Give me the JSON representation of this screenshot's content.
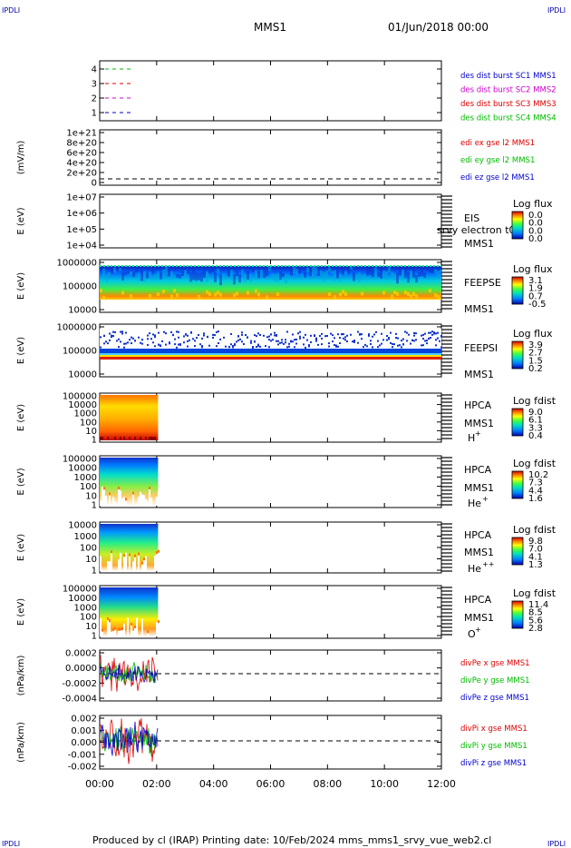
{
  "header": {
    "left_tag": "IPDLI",
    "right_tag": "IPDLI",
    "mission": "MMS1",
    "datetime": "01/Jun/2018 00:00"
  },
  "footer": {
    "left_tag": "IPDLI",
    "right_tag": "IPDLI",
    "credit": "Produced by cl (IRAP)   Printing date: 10/Feb/2024   mms_mms1_srvy_vue_web2.cl"
  },
  "chart_data": {
    "type": "stacked-time-series",
    "x_ticks": [
      "00:00",
      "02:00",
      "04:00",
      "06:00",
      "08:00",
      "10:00",
      "12:00"
    ],
    "xlim_hours": [
      0,
      12
    ],
    "panels": [
      {
        "id": "dist",
        "ylabel": "",
        "yticks": [
          "1",
          "2",
          "3",
          "4"
        ],
        "legend": [
          {
            "text": "des dist burst SC1 MMS1",
            "color": "#0000cc"
          },
          {
            "text": "des dist burst SC2 MMS2",
            "color": "#cc00cc"
          },
          {
            "text": "des dist burst SC3 MMS3",
            "color": "#dd0000"
          },
          {
            "text": "des dist burst SC4 MMS4",
            "color": "#00bb00"
          }
        ]
      },
      {
        "id": "edi",
        "ylabel": "(mV/m)",
        "yticks": [
          "0",
          "2e+20",
          "4e+20",
          "6e+20",
          "8e+20",
          "1e+21"
        ],
        "legend": [
          {
            "text": "edi ex gse l2 MMS1",
            "color": "#dd0000"
          },
          {
            "text": "edi ey gse l2 MMS1",
            "color": "#00bb00"
          },
          {
            "text": "edi ez gse l2 MMS1",
            "color": "#0000cc"
          }
        ]
      },
      {
        "id": "eis",
        "ylabel": "E (eV)",
        "yticks": [
          "1e+04",
          "1e+05",
          "1e+06",
          "1e+07"
        ],
        "label": "EIS",
        "sublabel": "MMS1",
        "overlay": "srvy electron t0",
        "colorbar": {
          "title": "Log flux",
          "ticks": [
            "0.0",
            "0.0",
            "0.0",
            "0.0"
          ]
        }
      },
      {
        "id": "feepse",
        "ylabel": "E (eV)",
        "yticks": [
          "10000",
          "100000",
          "1000000"
        ],
        "label": "FEEPSE",
        "sublabel": "MMS1",
        "colorbar": {
          "title": "Log flux",
          "ticks": [
            "3.1",
            "1.9",
            "0.7",
            "-0.5"
          ]
        }
      },
      {
        "id": "feepsi",
        "ylabel": "E (eV)",
        "yticks": [
          "10000",
          "100000",
          "1000000"
        ],
        "label": "FEEPSI",
        "sublabel": "MMS1",
        "colorbar": {
          "title": "Log flux",
          "ticks": [
            "3.9",
            "2.7",
            "1.5",
            "0.2"
          ]
        }
      },
      {
        "id": "hpca_h",
        "ylabel": "E (eV)",
        "yticks": [
          "1",
          "10",
          "100",
          "1000",
          "10000",
          "100000"
        ],
        "label": "HPCA",
        "sublabel": "MMS1",
        "species": "H",
        "species_sup": "+",
        "colorbar": {
          "title": "Log fdist",
          "ticks": [
            "9.0",
            "6.1",
            "3.3",
            "0.4"
          ]
        }
      },
      {
        "id": "hpca_he",
        "ylabel": "E (eV)",
        "yticks": [
          "1",
          "10",
          "100",
          "1000",
          "10000",
          "100000"
        ],
        "label": "HPCA",
        "sublabel": "MMS1",
        "species": "He",
        "species_sup": "+",
        "colorbar": {
          "title": "Log fdist",
          "ticks": [
            "10.2",
            "7.3",
            "4.4",
            "1.6"
          ]
        }
      },
      {
        "id": "hpca_he2",
        "ylabel": "E (eV)",
        "yticks": [
          "1",
          "10",
          "100",
          "1000",
          "10000"
        ],
        "label": "HPCA",
        "sublabel": "MMS1",
        "species": "He",
        "species_sup": "++",
        "colorbar": {
          "title": "Log fdist",
          "ticks": [
            "9.8",
            "7.0",
            "4.1",
            "1.3"
          ]
        }
      },
      {
        "id": "hpca_o",
        "ylabel": "E (eV)",
        "yticks": [
          "1",
          "10",
          "100",
          "1000",
          "10000",
          "100000"
        ],
        "label": "HPCA",
        "sublabel": "MMS1",
        "species": "O",
        "species_sup": "+",
        "colorbar": {
          "title": "Log fdist",
          "ticks": [
            "11.4",
            "8.5",
            "5.6",
            "2.8"
          ]
        }
      },
      {
        "id": "divpe",
        "ylabel": "(nPa/km)",
        "yticks": [
          "-0.0004",
          "-0.0002",
          "0.0000",
          "0.0002"
        ],
        "legend": [
          {
            "text": "divPe x gse MMS1",
            "color": "#dd0000"
          },
          {
            "text": "divPe y gse MMS1",
            "color": "#00bb00"
          },
          {
            "text": "divPe z gse MMS1",
            "color": "#0000cc"
          }
        ]
      },
      {
        "id": "divpi",
        "ylabel": "(nPa/km)",
        "yticks": [
          "-0.002",
          "-0.001",
          "0.000",
          "0.001",
          "0.002"
        ],
        "legend": [
          {
            "text": "divPi x gse MMS1",
            "color": "#dd0000"
          },
          {
            "text": "divPi y gse MMS1",
            "color": "#00bb00"
          },
          {
            "text": "divPi z gse MMS1",
            "color": "#0000cc"
          }
        ]
      }
    ]
  }
}
